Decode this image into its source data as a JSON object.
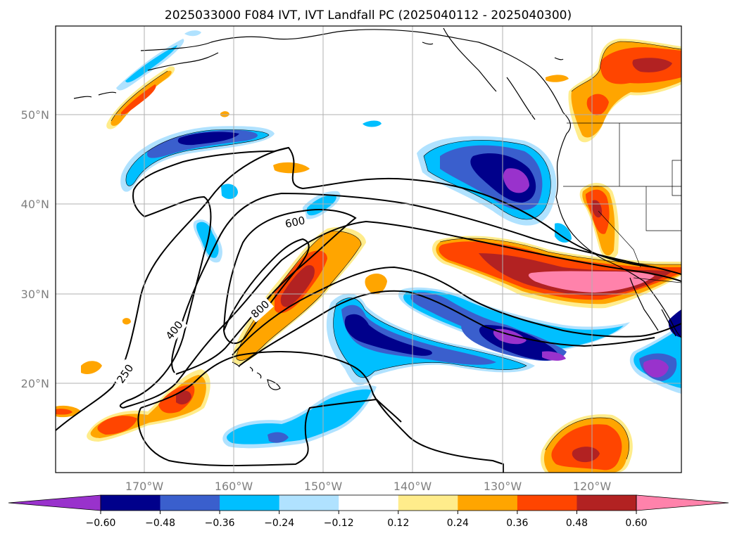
{
  "title": "2025033000 F084 IVT, IVT Landfall PC (2025040112 - 2025040300)",
  "lon_labels": [
    "170°W",
    "160°W",
    "150°W",
    "140°W",
    "130°W",
    "120°W"
  ],
  "lat_labels": [
    "50°N",
    "40°N",
    "30°N",
    "20°N"
  ],
  "contour_labels": [
    "250",
    "400",
    "600",
    "800"
  ],
  "colorbar": {
    "ticks": [
      "−0.60",
      "−0.48",
      "−0.36",
      "−0.24",
      "−0.12",
      "0.12",
      "0.24",
      "0.36",
      "0.48",
      "0.60"
    ],
    "colors": [
      "#9932cc",
      "#00008b",
      "#3a5fcd",
      "#00bfff",
      "#b0e2ff",
      "#ffffff",
      "#ffec8b",
      "#ffa500",
      "#ff4500",
      "#b22222",
      "#ff82ab"
    ]
  },
  "icons": {
    "coastline": "coastline-map",
    "borders": "state-borders"
  }
}
